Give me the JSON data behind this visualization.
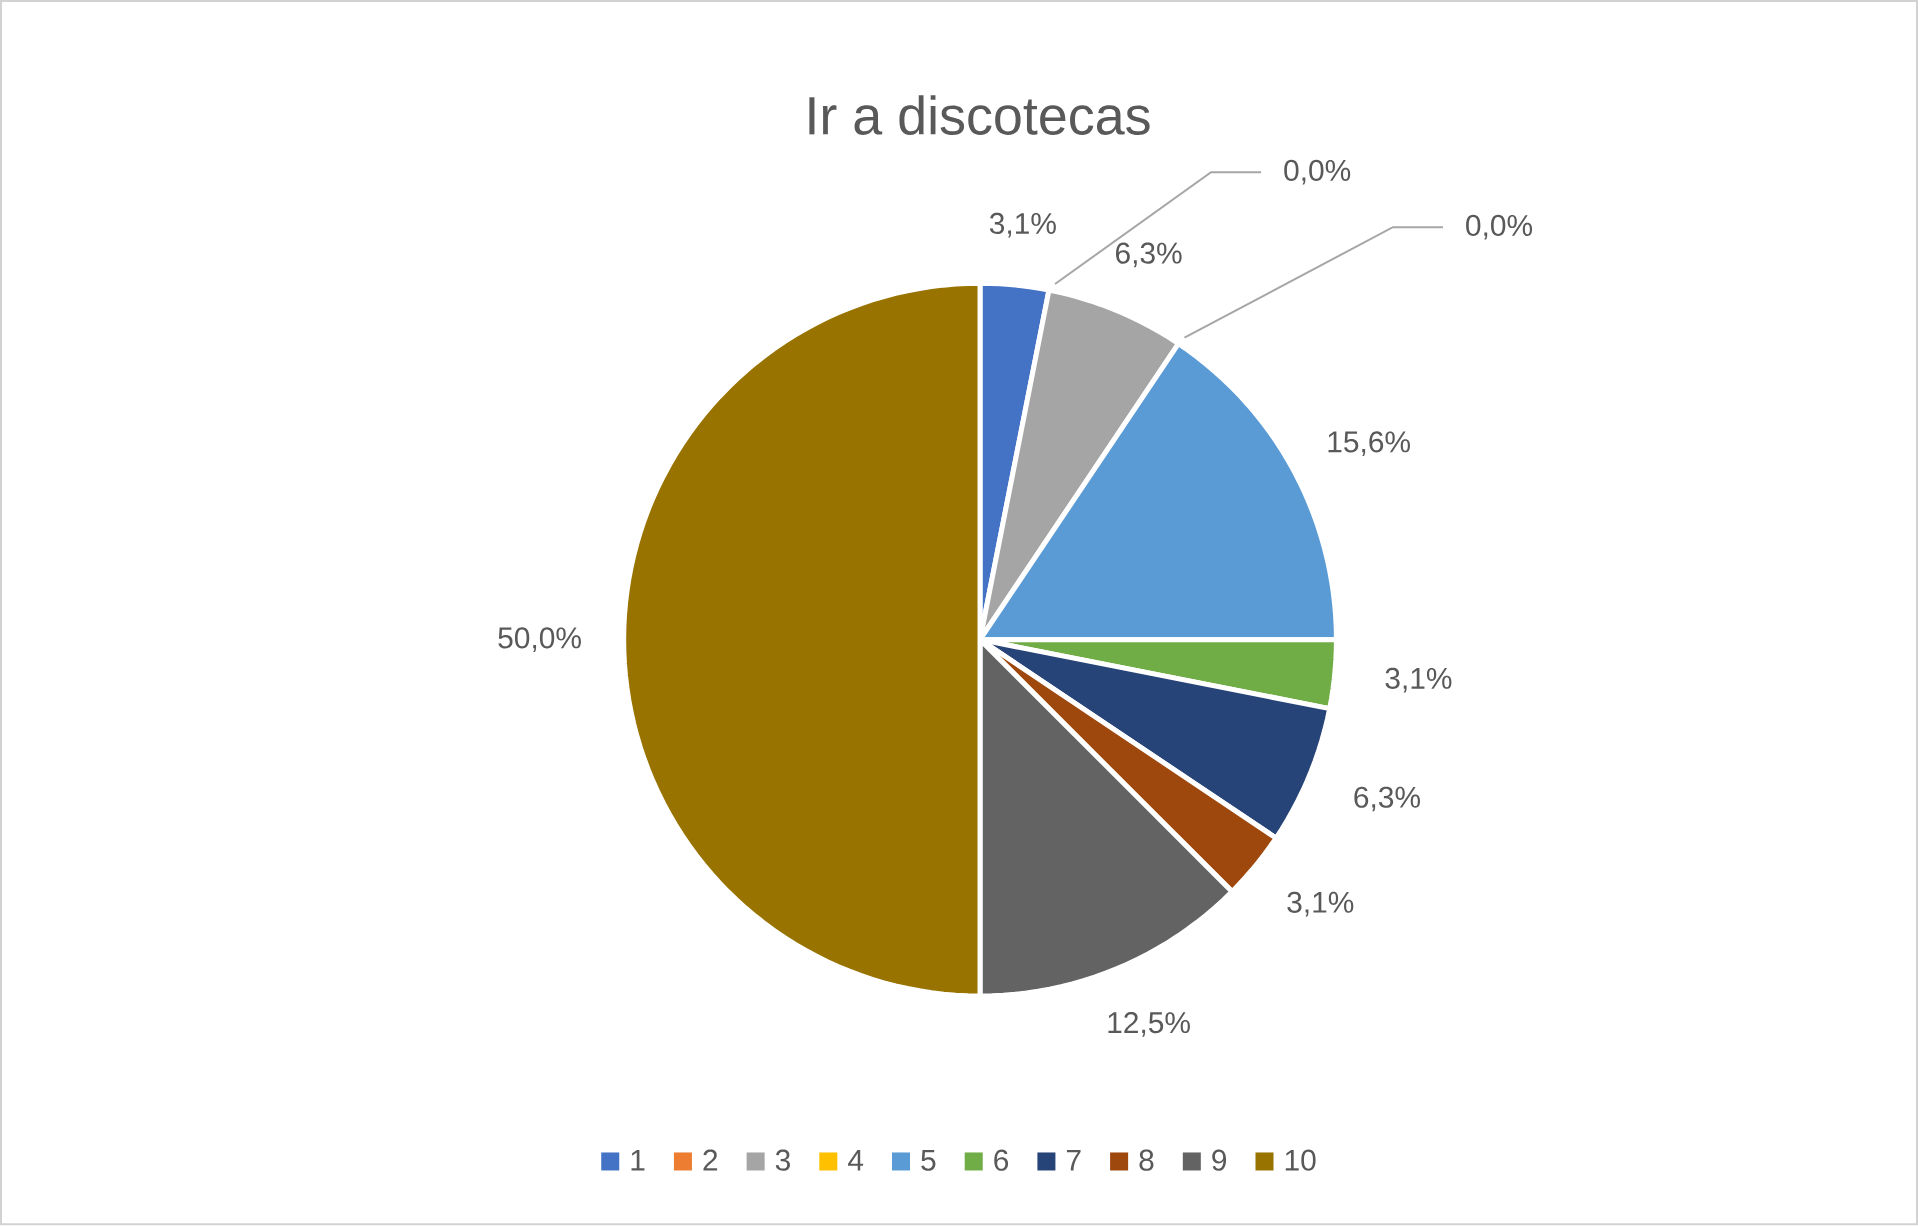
{
  "chart_data": {
    "type": "pie",
    "title": "Ir a discotecas",
    "categories": [
      "1",
      "2",
      "3",
      "4",
      "5",
      "6",
      "7",
      "8",
      "9",
      "10"
    ],
    "values": [
      3.1,
      0.0,
      6.3,
      0.0,
      15.6,
      3.1,
      6.3,
      3.1,
      12.5,
      50.0
    ],
    "colors": [
      "#4472c4",
      "#ed7d31",
      "#a5a5a5",
      "#ffc000",
      "#5b9bd5",
      "#70ad47",
      "#264478",
      "#9e480e",
      "#636363",
      "#997300"
    ],
    "value_labels": [
      "3,1%",
      "0,0%",
      "6,3%",
      "0,0%",
      "15,6%",
      "3,1%",
      "6,3%",
      "3,1%",
      "12,5%",
      "50,0%"
    ],
    "legend": "bottom"
  }
}
